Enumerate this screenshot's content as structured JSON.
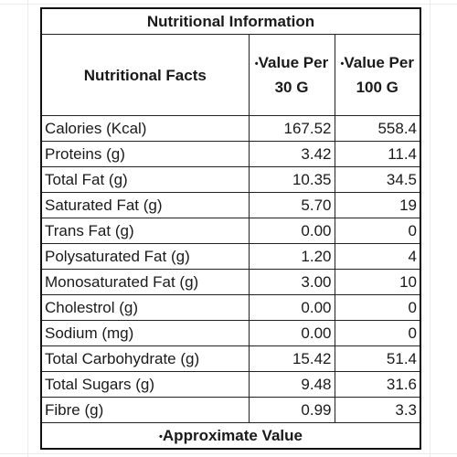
{
  "table": {
    "title": "Nutritional Information",
    "header": {
      "facts": "Nutritional Facts",
      "col1_star": "•",
      "col1": "Value Per 30 G",
      "col2_star": "•",
      "col2": "Value Per 100 G"
    },
    "rows": [
      {
        "name": "Calories (Kcal)",
        "v30": "167.52",
        "v100": "558.4"
      },
      {
        "name": "Proteins (g)",
        "v30": "3.42",
        "v100": "11.4"
      },
      {
        "name": "Total Fat (g)",
        "v30": "10.35",
        "v100": "34.5"
      },
      {
        "name": "Saturated Fat (g)",
        "v30": "5.70",
        "v100": "19"
      },
      {
        "name": "Trans Fat (g)",
        "v30": "0.00",
        "v100": "0"
      },
      {
        "name": "Polysaturated Fat (g)",
        "v30": "1.20",
        "v100": "4"
      },
      {
        "name": "Monosaturated Fat (g)",
        "v30": "3.00",
        "v100": "10"
      },
      {
        "name": "Cholestrol (g)",
        "v30": "0.00",
        "v100": "0"
      },
      {
        "name": "Sodium  (mg)",
        "v30": "0.00",
        "v100": "0"
      },
      {
        "name": "Total Carbohydrate (g)",
        "v30": "15.42",
        "v100": "51.4"
      },
      {
        "name": "Total Sugars (g)",
        "v30": "9.48",
        "v100": "31.6"
      },
      {
        "name": "Fibre (g)",
        "v30": "0.99",
        "v100": "3.3"
      }
    ],
    "footer_star": "•",
    "footer": "Approximate Value"
  }
}
